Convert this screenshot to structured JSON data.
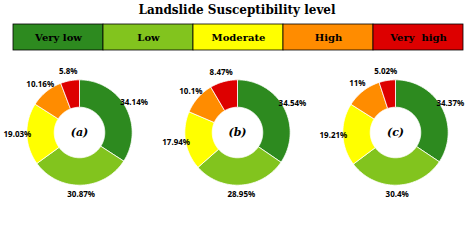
{
  "chart_data": {
    "type": "pie",
    "title": "Landslide Susceptibility level",
    "categories": [
      "Very low",
      "Low",
      "Moderate",
      "High",
      "Very  high"
    ],
    "colors": [
      "#2d8a1f",
      "#82c41e",
      "#ffff00",
      "#ff8c00",
      "#dd0000"
    ],
    "legend": "top",
    "data_labels": true,
    "series": [
      {
        "name": "(a)",
        "values": [
          34.14,
          30.87,
          19.03,
          10.16,
          5.8
        ],
        "value_labels": [
          "34.14%",
          "30.87%",
          "19.03%",
          "10.16%",
          "5.8%"
        ]
      },
      {
        "name": "(b)",
        "values": [
          34.54,
          28.95,
          17.94,
          10.1,
          8.47
        ],
        "value_labels": [
          "34.54%",
          "28.95%",
          "17.94%",
          "10.1%",
          "8.47%"
        ]
      },
      {
        "name": "(c)",
        "values": [
          34.37,
          30.4,
          19.21,
          11.0,
          5.02
        ],
        "value_labels": [
          "34.37%",
          "30.4%",
          "19.21%",
          "11%",
          "5.02%"
        ]
      }
    ]
  }
}
